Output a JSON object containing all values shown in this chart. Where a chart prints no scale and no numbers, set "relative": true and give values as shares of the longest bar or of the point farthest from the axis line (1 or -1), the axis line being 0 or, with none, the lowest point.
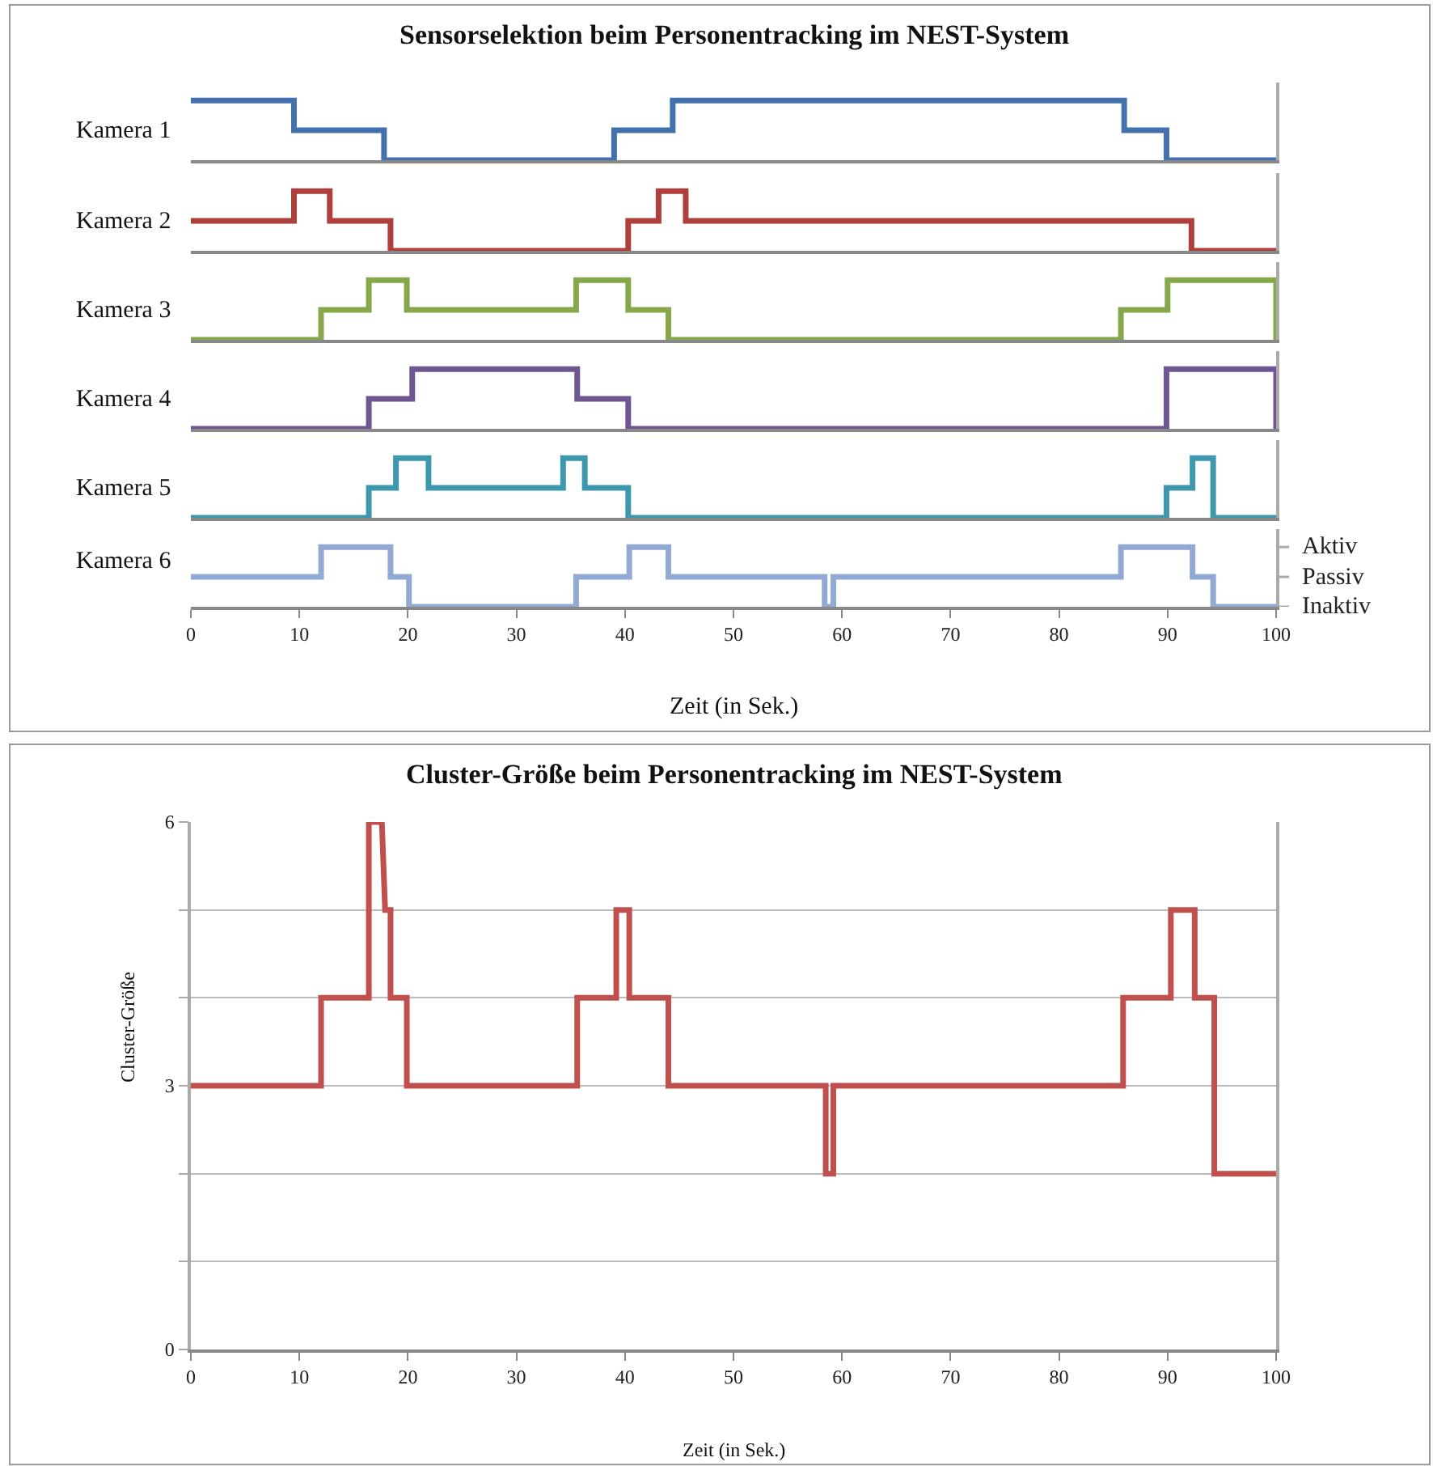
{
  "chart_data": [
    {
      "type": "step",
      "relative": true,
      "title": "Sensorselektion beim Personentracking im NEST-System",
      "ylabel": "Kamera 1",
      "x": [
        0,
        9.5,
        17.8,
        39,
        44.4,
        86,
        89.9,
        100
      ],
      "series": [
        {
          "color": "#4271ae",
          "values": [
            1,
            0.5,
            0,
            0.5,
            1,
            0.5,
            0,
            0
          ]
        }
      ],
      "xlim": [
        0,
        100
      ],
      "tick_labels": false
    },
    {
      "type": "step",
      "relative": true,
      "ylabel": "Kamera 2",
      "x": [
        0,
        9.5,
        12.8,
        18.4,
        40.3,
        43.1,
        45.6,
        92.2,
        100
      ],
      "series": [
        {
          "color": "#ad3f3c",
          "values": [
            0.5,
            1,
            0.5,
            0,
            0.5,
            1,
            0.5,
            0,
            0
          ]
        }
      ],
      "xlim": [
        0,
        100
      ],
      "tick_labels": false
    },
    {
      "type": "step",
      "relative": true,
      "ylabel": "Kamera 3",
      "x": [
        0,
        12,
        16.4,
        19.9,
        35.5,
        40.3,
        44,
        85.7,
        90,
        100
      ],
      "series": [
        {
          "color": "#87a84a",
          "values": [
            0,
            0.5,
            1,
            0.5,
            1,
            0.5,
            0,
            0.5,
            1,
            0
          ]
        }
      ],
      "xlim": [
        0,
        100
      ],
      "tick_labels": false
    },
    {
      "type": "step",
      "relative": true,
      "ylabel": "Kamera 4",
      "x": [
        0,
        16.4,
        20.4,
        35.6,
        40.3,
        89.9,
        100
      ],
      "series": [
        {
          "color": "#6f5592",
          "values": [
            0,
            0.5,
            1,
            0.5,
            0,
            1,
            0
          ]
        }
      ],
      "xlim": [
        0,
        100
      ],
      "tick_labels": false
    },
    {
      "type": "step",
      "relative": true,
      "ylabel": "Kamera 5",
      "x": [
        0,
        16.4,
        18.9,
        21.9,
        34.3,
        36.3,
        40.3,
        89.9,
        92.3,
        94.2,
        100
      ],
      "series": [
        {
          "color": "#3d97ad",
          "values": [
            0,
            0.5,
            1,
            0.5,
            1,
            0.5,
            0,
            0.5,
            1,
            0,
            0
          ]
        }
      ],
      "xlim": [
        0,
        100
      ],
      "tick_labels": false
    },
    {
      "type": "step",
      "relative": true,
      "ylabel": "Kamera 6",
      "xlabel": "Zeit (in Sek.)",
      "x": [
        0,
        12,
        18.4,
        20.1,
        35.5,
        40.4,
        44,
        58.4,
        59.2,
        85.7,
        92.3,
        94.2,
        100
      ],
      "series": [
        {
          "color": "#91a9d3",
          "values": [
            0.5,
            1,
            0.5,
            0,
            0.5,
            1,
            0.5,
            0,
            0.5,
            1,
            0.5,
            0,
            0
          ]
        }
      ],
      "xlim": [
        0,
        100
      ],
      "xticks": [
        0,
        10,
        20,
        30,
        40,
        50,
        60,
        70,
        80,
        90,
        100
      ],
      "tick_labels": "x",
      "annotations": [
        "Aktiv",
        "Passiv",
        "Inaktiv"
      ]
    },
    {
      "type": "line",
      "title": "Cluster-Größe beim Personentracking im NEST-System",
      "xlabel": "Zeit (in Sek.)",
      "ylabel": "Cluster-Größe",
      "x": [
        0,
        12,
        12,
        16.4,
        16.4,
        17.6,
        17.9,
        18.4,
        18.4,
        19.9,
        19.9,
        35.6,
        35.6,
        39.2,
        39.2,
        40.4,
        40.4,
        44,
        44,
        58.5,
        58.5,
        59.2,
        59.2,
        85.9,
        85.9,
        90.3,
        90.3,
        92.5,
        92.5,
        94.3,
        94.3,
        100
      ],
      "series": [
        {
          "color": "#c0504d",
          "values": [
            3,
            3,
            4,
            4,
            6,
            6,
            5,
            5,
            4,
            4,
            3,
            3,
            4,
            4,
            5,
            5,
            4,
            4,
            3,
            3,
            2,
            2,
            3,
            3,
            4,
            4,
            5,
            5,
            4,
            4,
            2,
            2
          ]
        }
      ],
      "xlim": [
        0,
        100
      ],
      "xticks": [
        0,
        10,
        20,
        30,
        40,
        50,
        60,
        70,
        80,
        90,
        100
      ],
      "ylim": [
        0,
        6
      ],
      "yticks": [
        0,
        {
          "value": 1,
          "label": null
        },
        {
          "value": 2,
          "label": null
        },
        3,
        {
          "value": 4,
          "label": null
        },
        {
          "value": 5,
          "label": null
        },
        6
      ],
      "grid": "y"
    }
  ]
}
